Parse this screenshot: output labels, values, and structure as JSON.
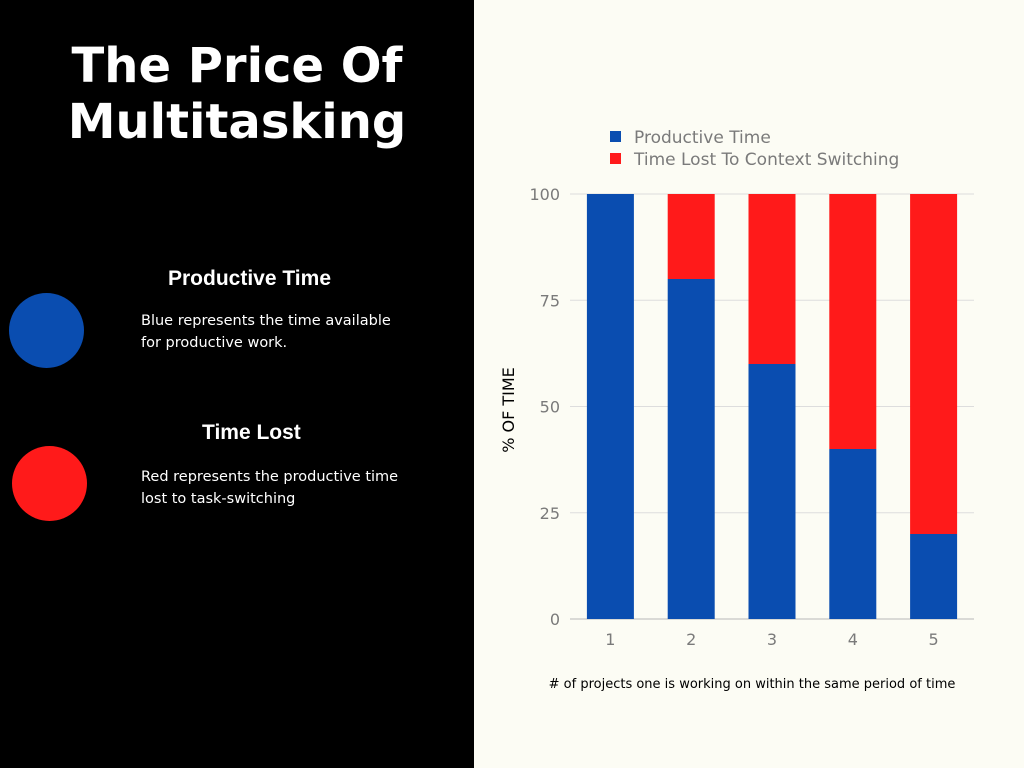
{
  "title": "The Price Of Multitasking",
  "legend_panel": {
    "productive": {
      "heading": "Productive Time",
      "description": "Blue represents the time available for productive work."
    },
    "lost": {
      "heading": "Time Lost",
      "description": "Red represents the productive time lost to task-switching"
    }
  },
  "colors": {
    "blue": "#0a4db0",
    "red": "#ff1a1a",
    "left_background": "#000000",
    "right_background": "#fcfcf4"
  },
  "chart_data": {
    "type": "bar",
    "stacked": true,
    "categories": [
      "1",
      "2",
      "3",
      "4",
      "5"
    ],
    "series": [
      {
        "name": "Productive Time",
        "color": "#0a4db0",
        "values": [
          100,
          80,
          60,
          40,
          20
        ]
      },
      {
        "name": "Time Lost To Context Switching",
        "color": "#ff1a1a",
        "values": [
          0,
          20,
          40,
          60,
          80
        ]
      }
    ],
    "ylabel": "% OF TIME",
    "xlabel": "# of projects one is working on within the same period of time",
    "ylim": [
      0,
      100
    ],
    "yticks": [
      0,
      25,
      50,
      75,
      100
    ],
    "grid": true,
    "legend": "top"
  }
}
